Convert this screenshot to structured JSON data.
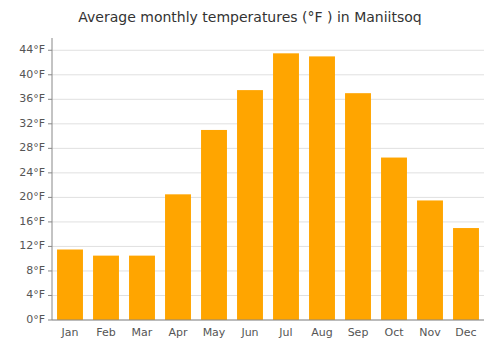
{
  "chart_data": {
    "type": "bar",
    "title": "Average monthly temperatures (°F ) in Maniitsoq",
    "categories": [
      "Jan",
      "Feb",
      "Mar",
      "Apr",
      "May",
      "Jun",
      "Jul",
      "Aug",
      "Sep",
      "Oct",
      "Nov",
      "Dec"
    ],
    "values": [
      11.5,
      10.5,
      10.5,
      20.5,
      31.0,
      37.5,
      43.5,
      43.0,
      37.0,
      26.5,
      19.5,
      15.0
    ],
    "color": "#FFA500",
    "ylim": [
      0,
      46
    ],
    "yticks": [
      {
        "value": 0,
        "label": "0°F"
      },
      {
        "value": 4,
        "label": "4°F"
      },
      {
        "value": 8,
        "label": "8°F"
      },
      {
        "value": 12,
        "label": "12°F"
      },
      {
        "value": 16,
        "label": "16°F"
      },
      {
        "value": 20,
        "label": "20°F"
      },
      {
        "value": 24,
        "label": "24°F"
      },
      {
        "value": 28,
        "label": "28°F"
      },
      {
        "value": 32,
        "label": "32°F"
      },
      {
        "value": 36,
        "label": "36°F"
      },
      {
        "value": 40,
        "label": "40°F"
      },
      {
        "value": 44,
        "label": "44°F"
      }
    ],
    "grid": true
  }
}
